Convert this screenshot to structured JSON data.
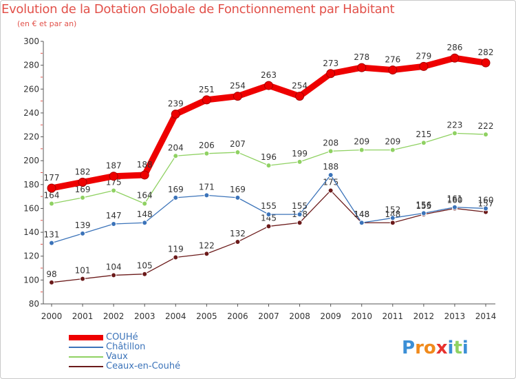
{
  "chart_data": {
    "type": "line",
    "title": "Evolution de la Dotation Globale de Fonctionnement par Habitant",
    "subtitle": "(en € et par an)",
    "categories": [
      "2000",
      "2001",
      "2002",
      "2003",
      "2004",
      "2005",
      "2006",
      "2007",
      "2008",
      "2009",
      "2010",
      "2011",
      "2012",
      "2013",
      "2014"
    ],
    "ylim": [
      80,
      300
    ],
    "yticks": [
      "80",
      "100",
      "120",
      "140",
      "160",
      "180",
      "200",
      "220",
      "240",
      "260",
      "280",
      "300"
    ],
    "grid": false,
    "legend_position": "bottom-left",
    "series": [
      {
        "name": "Ceaux-en-Couhé",
        "color": "#6b1a1a",
        "values": [
          98,
          101,
          104,
          105,
          119,
          122,
          132,
          145,
          148,
          175,
          148,
          148,
          155,
          160,
          157
        ],
        "labels": [
          "98",
          "101",
          "104",
          "105",
          "119",
          "122",
          "132",
          "145",
          "148",
          "175",
          "148",
          "148",
          "155",
          "160",
          "157"
        ]
      },
      {
        "name": "Châtillon",
        "color": "#3b73b9",
        "values": [
          131,
          139,
          147,
          148,
          169,
          171,
          169,
          155,
          155,
          188,
          148,
          152,
          156,
          161,
          160
        ],
        "labels": [
          "131",
          "139",
          "147",
          "148",
          "169",
          "171",
          "169",
          "155",
          "155",
          "188",
          "148",
          "152",
          "156",
          "161",
          "160"
        ]
      },
      {
        "name": "Vaux",
        "color": "#8fd162",
        "values": [
          164,
          169,
          175,
          164,
          204,
          206,
          207,
          196,
          199,
          208,
          209,
          209,
          215,
          223,
          222
        ],
        "labels": [
          "164",
          "169",
          "175",
          "164",
          "204",
          "206",
          "207",
          "196",
          "199",
          "208",
          "209",
          "209",
          "215",
          "223",
          "222"
        ]
      },
      {
        "name": "COUHé",
        "color": "#ee0000",
        "values": [
          177,
          182,
          187,
          188,
          239,
          251,
          254,
          263,
          254,
          273,
          278,
          276,
          279,
          286,
          282
        ],
        "labels": [
          "177",
          "182",
          "187",
          "188",
          "239",
          "251",
          "254",
          "263",
          "254",
          "273",
          "278",
          "276",
          "279",
          "286",
          "282"
        ]
      }
    ],
    "legend": [
      "COUHé",
      "Châtillon",
      "Vaux",
      "Ceaux-en-Couhé"
    ]
  },
  "branding": {
    "logo_text": "Proxiti",
    "logo_letters": [
      "P",
      "r",
      "o",
      "x",
      "i",
      "t",
      "i"
    ],
    "logo_colors": [
      "#3b8fd6",
      "#f08a1c",
      "#f08a1c",
      "#e8322f",
      "#3b8fd6",
      "#8fd162",
      "#3b8fd6"
    ]
  }
}
